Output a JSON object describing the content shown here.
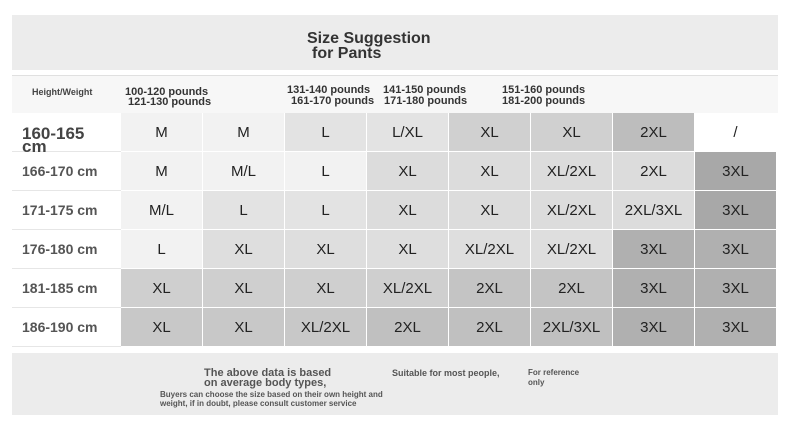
{
  "header": {
    "title": "Size Suggestion",
    "subtitle": "for Pants"
  },
  "table": {
    "corner": "Height/Weight",
    "weights": [
      "100-120 pounds",
      "121-130 pounds",
      "131-140 pounds",
      "141-150 pounds",
      "151-160 pounds",
      "161-170 pounds",
      "171-180 pounds",
      "181-200 pounds"
    ],
    "heights": [
      "160-165\ncm",
      "166-170 cm",
      "171-175 cm",
      "176-180 cm",
      "181-185 cm",
      "186-190 cm"
    ],
    "rows": [
      [
        "M",
        "M",
        "L",
        "L/XL",
        "XL",
        "XL",
        "2XL",
        "/"
      ],
      [
        "M",
        "M/L",
        "L",
        "XL",
        "XL",
        "XL/2XL",
        "2XL",
        "3XL"
      ],
      [
        "M/L",
        "L",
        "L",
        "XL",
        "XL",
        "XL/2XL",
        "2XL/3XL",
        "3XL"
      ],
      [
        "L",
        "XL",
        "XL",
        "XL",
        "XL/2XL",
        "XL/2XL",
        "3XL",
        "3XL"
      ],
      [
        "XL",
        "XL",
        "XL",
        "XL/2XL",
        "2XL",
        "2XL",
        "3XL",
        "3XL"
      ],
      [
        "XL",
        "XL",
        "XL/2XL",
        "2XL",
        "2XL",
        "2XL/3XL",
        "3XL",
        "3XL"
      ]
    ],
    "colors": [
      [
        "#f2f2f2",
        "#f2f2f2",
        "#e3e3e3",
        "#e3e3e3",
        "#d0d0d0",
        "#d0d0d0",
        "#bdbdbd",
        "#ffffff"
      ],
      [
        "#f2f2f2",
        "#f2f2f2",
        "#f2f2f2",
        "#dcdcdc",
        "#dcdcdc",
        "#dcdcdc",
        "#dcdcdc",
        "#a8a8a8"
      ],
      [
        "#f2f2f2",
        "#e3e3e3",
        "#e3e3e3",
        "#dcdcdc",
        "#dcdcdc",
        "#dcdcdc",
        "#dcdcdc",
        "#a8a8a8"
      ],
      [
        "#f2f2f2",
        "#dedede",
        "#dedede",
        "#dedede",
        "#dedede",
        "#dedede",
        "#b0b0b0",
        "#b0b0b0"
      ],
      [
        "#cfcfcf",
        "#cfcfcf",
        "#cfcfcf",
        "#cfcfcf",
        "#c4c4c4",
        "#c4c4c4",
        "#b0b0b0",
        "#b0b0b0"
      ],
      [
        "#c8c8c8",
        "#c8c8c8",
        "#c8c8c8",
        "#c0c0c0",
        "#c0c0c0",
        "#c0c0c0",
        "#b0b0b0",
        "#b0b0b0"
      ]
    ]
  },
  "footer": {
    "note1": "The above data is based\non average body types,",
    "note2": "Suitable for most people,",
    "note3": "For reference\nonly",
    "note4": "Buyers can choose the size based on their own height and\nweight, if in doubt, please consult customer service"
  }
}
